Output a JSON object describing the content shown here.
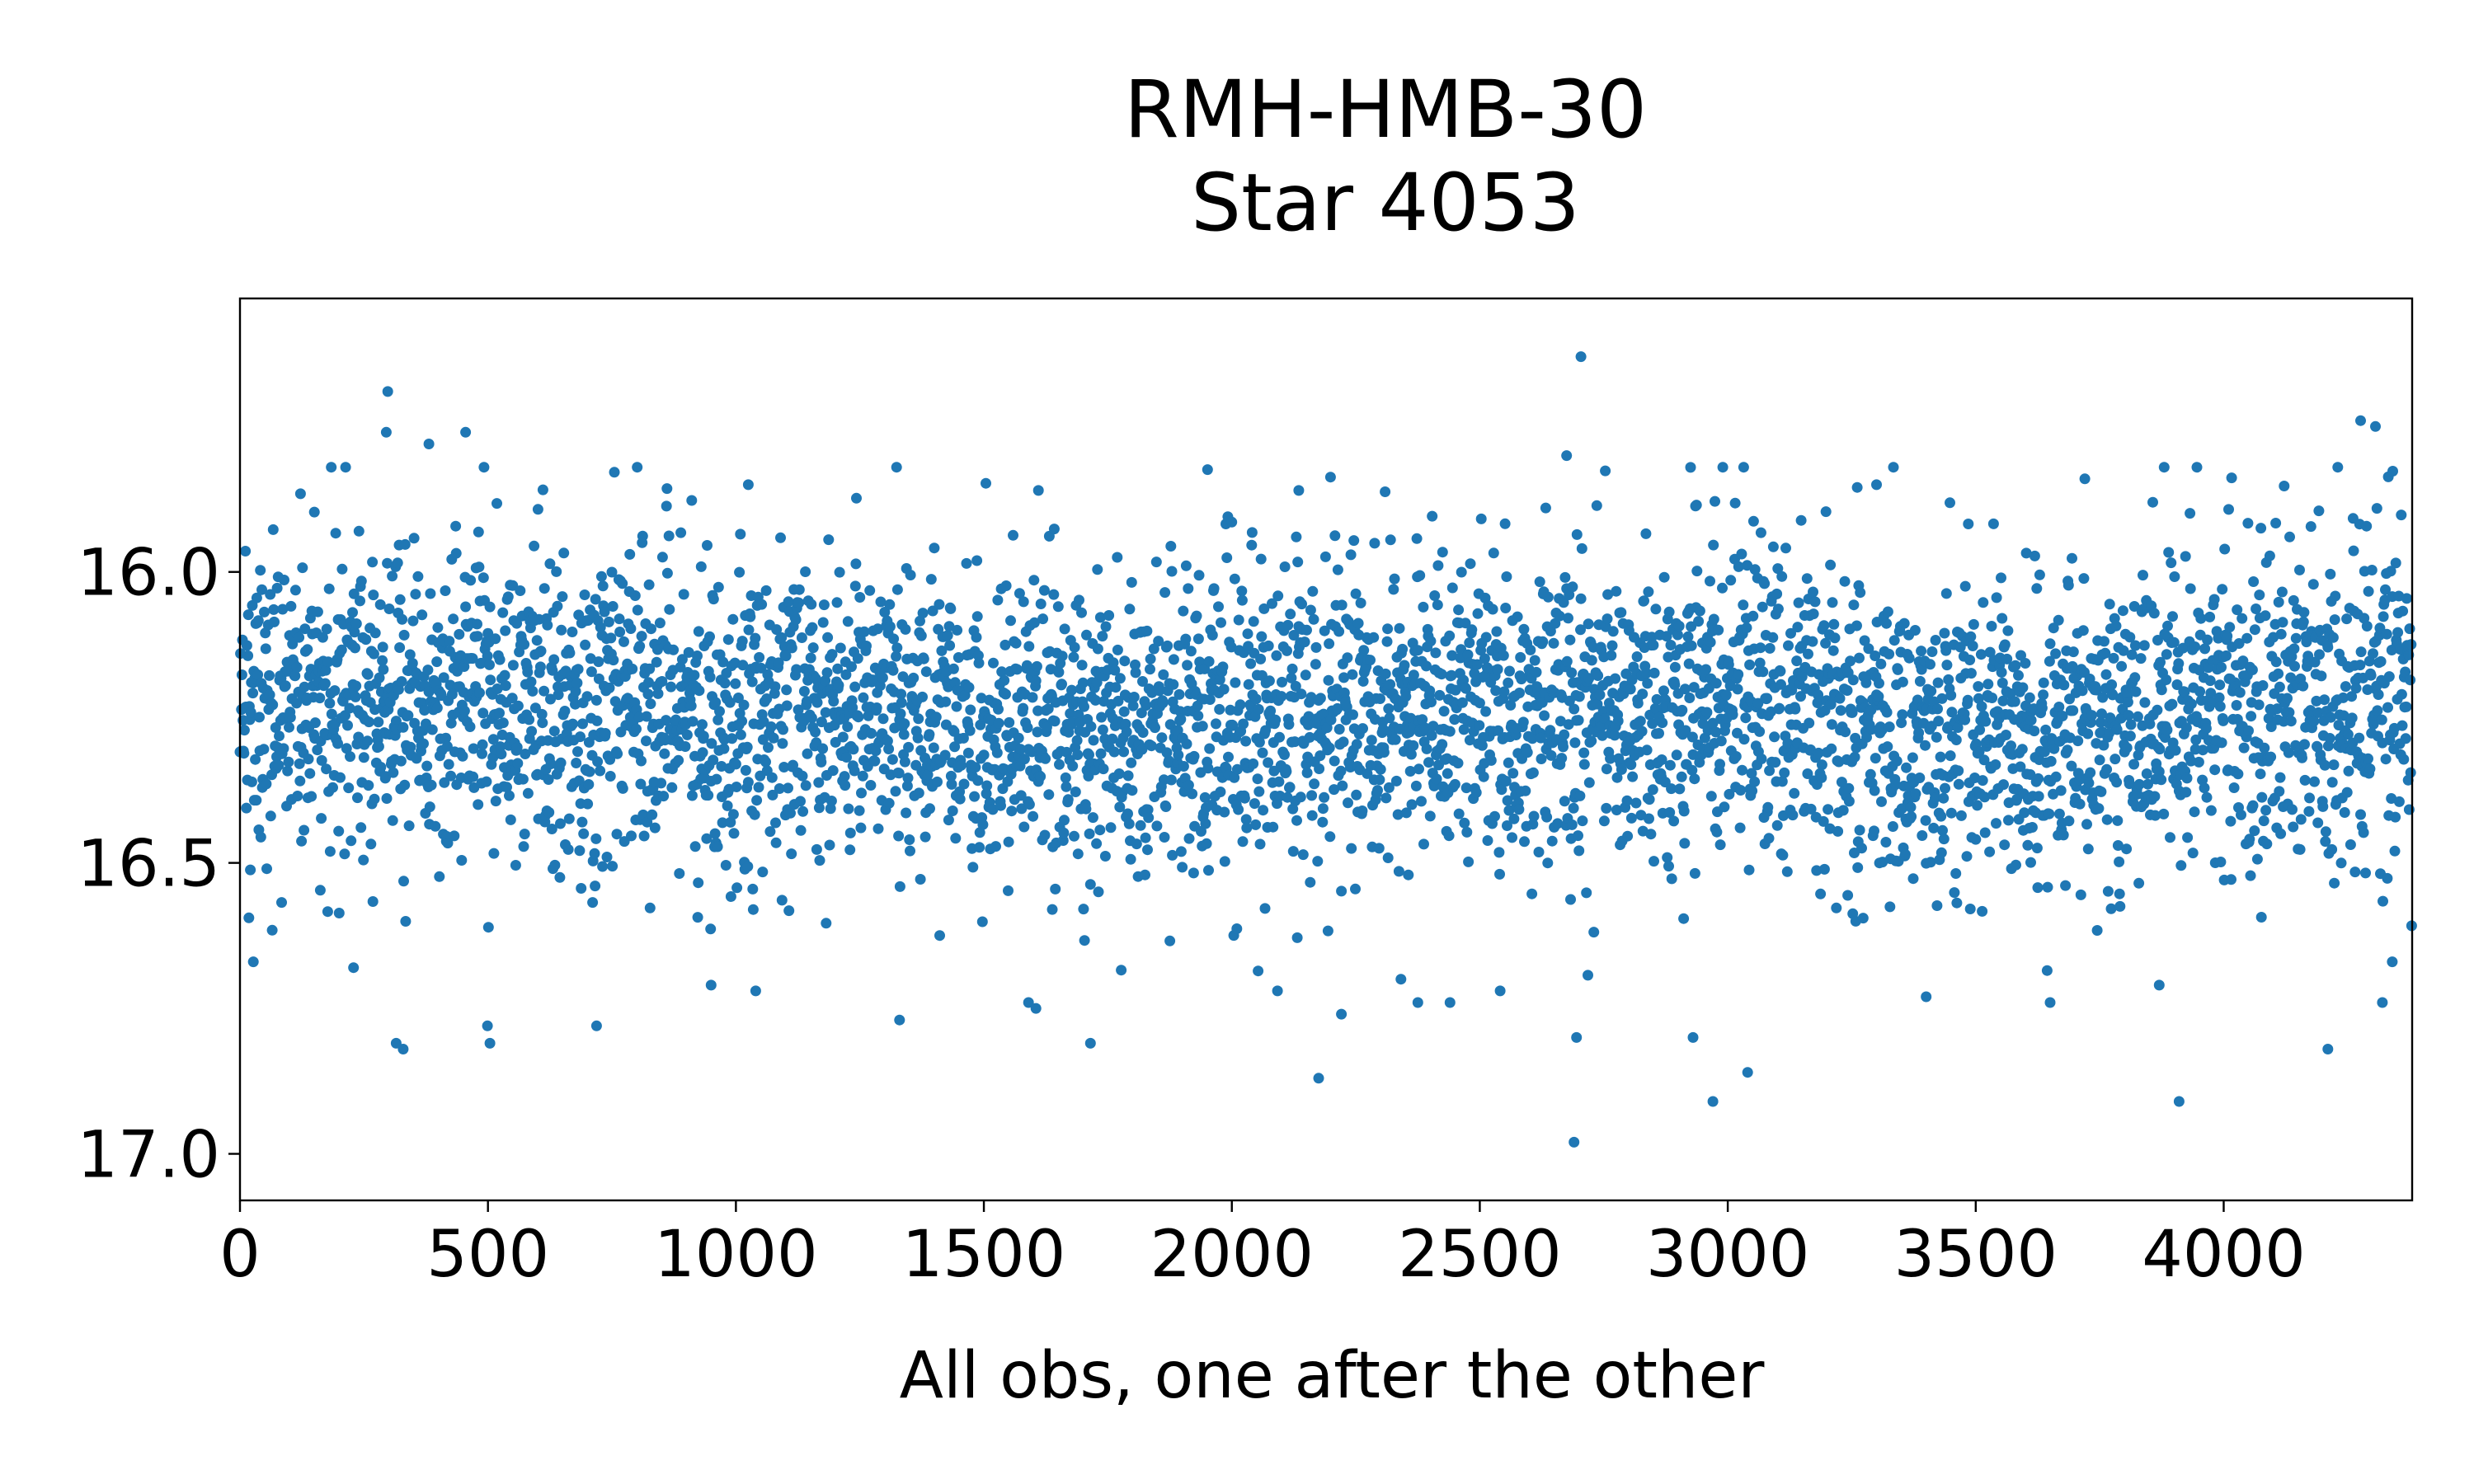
{
  "chart_data": {
    "type": "scatter",
    "title": "RMH-HMB-30",
    "subtitle": "Star 4053",
    "xlabel": "All obs, one after the other",
    "ylabel": "",
    "xlim": [
      0,
      4380
    ],
    "ylim": [
      17.08,
      15.53
    ],
    "y_inverted": true,
    "xticks": [
      "0",
      "500",
      "1000",
      "1500",
      "2000",
      "2500",
      "3000",
      "3500",
      "4000"
    ],
    "yticks": [
      "16.0",
      "16.5",
      "17.0"
    ],
    "grid": false,
    "legend": "none",
    "marker_color": "#1f77b4",
    "n_points": 4380,
    "series": [
      {
        "values_note_count": 4380,
        "trend": [
          [
            0,
            16.24
          ],
          [
            500,
            16.22
          ],
          [
            1000,
            16.25
          ],
          [
            1500,
            16.27
          ],
          [
            2000,
            16.25
          ],
          [
            2500,
            16.24
          ],
          [
            3000,
            16.23
          ],
          [
            3500,
            16.28
          ],
          [
            4000,
            16.24
          ],
          [
            4380,
            16.2
          ]
        ],
        "points": [
          [
            298,
            15.69
          ],
          [
            2704,
            15.63
          ],
          [
            455,
            15.76
          ],
          [
            381,
            15.78
          ],
          [
            4276,
            15.74
          ],
          [
            4306,
            15.75
          ],
          [
            295,
            15.76
          ],
          [
            2675,
            15.8
          ],
          [
            1025,
            15.85
          ],
          [
            2990,
            15.82
          ],
          [
            2135,
            15.86
          ],
          [
            1610,
            15.86
          ],
          [
            3300,
            15.85
          ],
          [
            3720,
            15.84
          ],
          [
            3880,
            15.82
          ],
          [
            329,
            16.82
          ],
          [
            315,
            16.81
          ],
          [
            504,
            16.81
          ],
          [
            499,
            16.78
          ],
          [
            719,
            16.78
          ],
          [
            1330,
            16.77
          ],
          [
            1715,
            16.81
          ],
          [
            2175,
            16.87
          ],
          [
            2221,
            16.76
          ],
          [
            2695,
            16.8
          ],
          [
            2930,
            16.8
          ],
          [
            2970,
            16.91
          ],
          [
            3040,
            16.86
          ],
          [
            3910,
            16.91
          ],
          [
            4210,
            16.82
          ],
          [
            2690,
            16.98
          ],
          [
            4320,
            16.74
          ],
          [
            2375,
            16.74
          ],
          [
            2440,
            16.74
          ],
          [
            1590,
            16.74
          ],
          [
            27,
            16.67
          ],
          [
            229,
            16.68
          ],
          [
            1605,
            16.75
          ],
          [
            1040,
            16.72
          ],
          [
            950,
            16.71
          ],
          [
            3400,
            16.73
          ],
          [
            3650,
            16.74
          ],
          [
            3870,
            16.71
          ],
          [
            4340,
            16.67
          ]
        ]
      }
    ]
  }
}
